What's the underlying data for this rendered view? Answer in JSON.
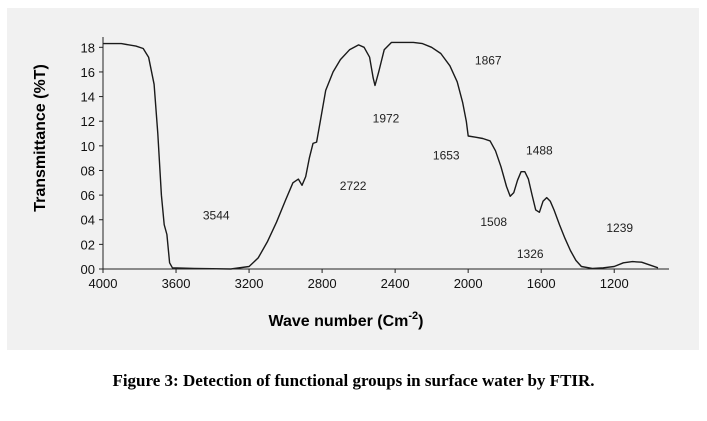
{
  "chart_data": {
    "type": "line",
    "title": "",
    "xlabel": "Wave number (Cm",
    "xlabel_sup": "-2",
    "xlabel_close": ")",
    "ylabel": "Transmittance (%T)",
    "xlim": [
      4000,
      900
    ],
    "ylim": [
      0,
      19
    ],
    "x_reversed": true,
    "grid": false,
    "legend": "none",
    "x_ticks": [
      {
        "value": 4000,
        "label": "4000"
      },
      {
        "value": 3600,
        "label": "3600"
      },
      {
        "value": 3200,
        "label": "3200"
      },
      {
        "value": 2800,
        "label": "2800"
      },
      {
        "value": 2400,
        "label": "2400"
      },
      {
        "value": 2000,
        "label": "2000"
      },
      {
        "value": 1600,
        "label": "1600"
      },
      {
        "value": 1200,
        "label": "1200"
      }
    ],
    "y_ticks": [
      {
        "value": 0,
        "label": "00"
      },
      {
        "value": 2,
        "label": "02"
      },
      {
        "value": 4,
        "label": "04"
      },
      {
        "value": 6,
        "label": "06"
      },
      {
        "value": 8,
        "label": "08"
      },
      {
        "value": 10,
        "label": "10"
      },
      {
        "value": 12,
        "label": "12"
      },
      {
        "value": 14,
        "label": "14"
      },
      {
        "value": 16,
        "label": "16"
      },
      {
        "value": 18,
        "label": "18"
      }
    ],
    "series": [
      {
        "color": "#1a1a1a",
        "points": [
          [
            4000,
            18.3
          ],
          [
            3900,
            18.3
          ],
          [
            3820,
            18.1
          ],
          [
            3780,
            17.9
          ],
          [
            3750,
            17.2
          ],
          [
            3720,
            15.0
          ],
          [
            3700,
            11.0
          ],
          [
            3680,
            6.0
          ],
          [
            3665,
            3.6
          ],
          [
            3650,
            2.8
          ],
          [
            3635,
            0.5
          ],
          [
            3620,
            0.1
          ],
          [
            3500,
            0.05
          ],
          [
            3300,
            0.0
          ],
          [
            3200,
            0.2
          ],
          [
            3150,
            0.9
          ],
          [
            3100,
            2.2
          ],
          [
            3050,
            3.8
          ],
          [
            3000,
            5.6
          ],
          [
            2960,
            7.0
          ],
          [
            2930,
            7.3
          ],
          [
            2910,
            6.8
          ],
          [
            2890,
            7.5
          ],
          [
            2870,
            9.0
          ],
          [
            2850,
            10.2
          ],
          [
            2830,
            10.3
          ],
          [
            2810,
            12.0
          ],
          [
            2780,
            14.5
          ],
          [
            2740,
            16.0
          ],
          [
            2700,
            17.0
          ],
          [
            2650,
            17.8
          ],
          [
            2600,
            18.2
          ],
          [
            2570,
            18.0
          ],
          [
            2540,
            17.2
          ],
          [
            2520,
            15.5
          ],
          [
            2510,
            14.9
          ],
          [
            2490,
            16.0
          ],
          [
            2460,
            17.8
          ],
          [
            2420,
            18.4
          ],
          [
            2300,
            18.4
          ],
          [
            2250,
            18.3
          ],
          [
            2200,
            18.0
          ],
          [
            2150,
            17.5
          ],
          [
            2100,
            16.5
          ],
          [
            2060,
            15.2
          ],
          [
            2030,
            13.5
          ],
          [
            2010,
            12.0
          ],
          [
            2000,
            10.8
          ],
          [
            1960,
            10.7
          ],
          [
            1920,
            10.6
          ],
          [
            1880,
            10.4
          ],
          [
            1850,
            9.6
          ],
          [
            1820,
            8.3
          ],
          [
            1790,
            6.7
          ],
          [
            1770,
            5.9
          ],
          [
            1750,
            6.2
          ],
          [
            1730,
            7.2
          ],
          [
            1710,
            7.9
          ],
          [
            1690,
            7.9
          ],
          [
            1670,
            7.3
          ],
          [
            1650,
            6.0
          ],
          [
            1630,
            4.8
          ],
          [
            1610,
            4.6
          ],
          [
            1590,
            5.5
          ],
          [
            1570,
            5.8
          ],
          [
            1550,
            5.5
          ],
          [
            1530,
            4.8
          ],
          [
            1500,
            3.6
          ],
          [
            1470,
            2.5
          ],
          [
            1440,
            1.5
          ],
          [
            1410,
            0.7
          ],
          [
            1380,
            0.2
          ],
          [
            1320,
            0.05
          ],
          [
            1260,
            0.1
          ],
          [
            1200,
            0.2
          ],
          [
            1150,
            0.5
          ],
          [
            1100,
            0.6
          ],
          [
            1050,
            0.55
          ],
          [
            1000,
            0.3
          ],
          [
            960,
            0.1
          ]
        ]
      }
    ],
    "annotations": [
      {
        "text": "3544",
        "x": 3380,
        "y": 4.0
      },
      {
        "text": "2722",
        "x": 2630,
        "y": 6.4
      },
      {
        "text": "1972",
        "x": 2450,
        "y": 11.9
      },
      {
        "text": "1867",
        "x": 1890,
        "y": 16.6
      },
      {
        "text": "1653",
        "x": 2120,
        "y": 8.9
      },
      {
        "text": "1488",
        "x": 1610,
        "y": 9.3
      },
      {
        "text": "1508",
        "x": 1860,
        "y": 3.5
      },
      {
        "text": "1326",
        "x": 1660,
        "y": 0.9
      },
      {
        "text": "1239",
        "x": 1170,
        "y": 3.0
      }
    ]
  },
  "caption": "Figure 3: Detection of functional groups in surface water by FTIR."
}
